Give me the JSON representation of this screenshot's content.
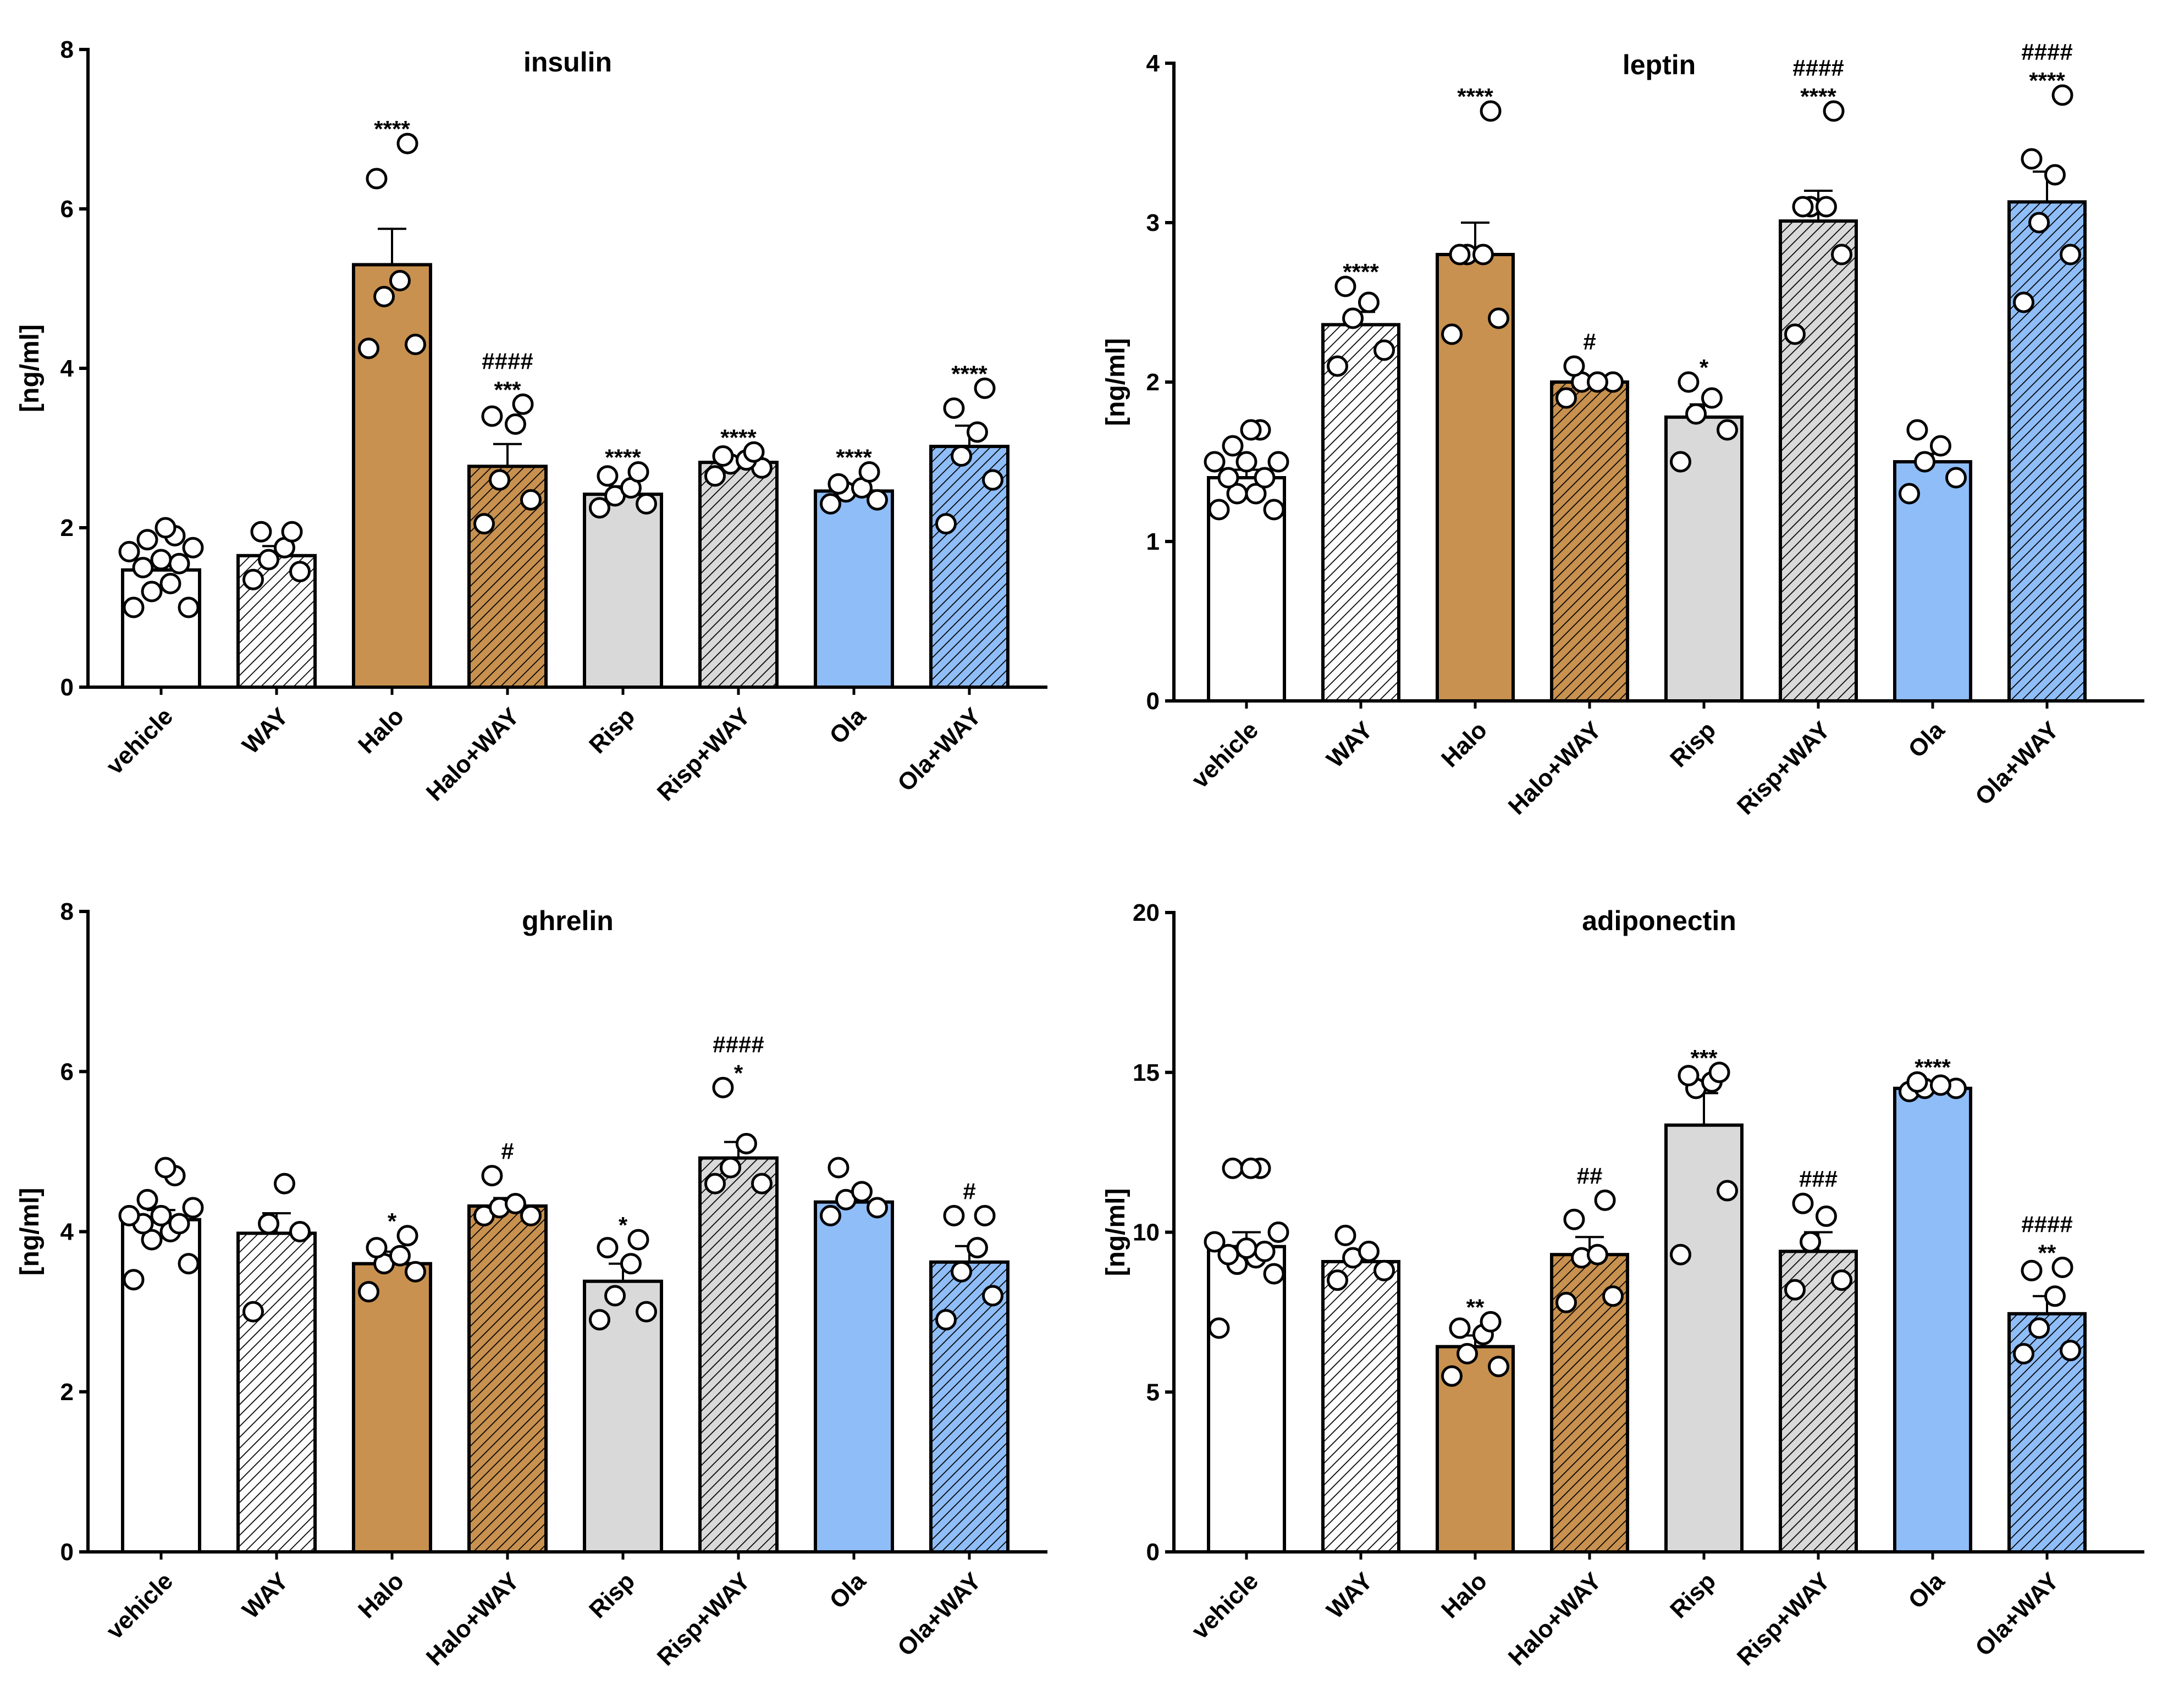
{
  "figure": "Hormone levels by treatment group",
  "colors": {
    "white": "#ffffff",
    "halo": "#c8914f",
    "risp": "#d9d9d9",
    "ola": "#8fbdf7",
    "axis": "#000000"
  },
  "chart_data": [
    {
      "type": "bar",
      "title": "insulin",
      "ylabel": "[ng/ml]",
      "ylim": [
        0,
        8
      ],
      "yticks": [
        "0",
        "2",
        "4",
        "6",
        "8"
      ],
      "categories": [
        "vehicle",
        "WAY",
        "Halo",
        "Halo+WAY",
        "Risp",
        "Risp+WAY",
        "Ola",
        "Ola+WAY"
      ],
      "values": [
        1.47,
        1.65,
        5.3,
        2.77,
        2.42,
        2.82,
        2.46,
        3.02
      ],
      "sem": [
        0.1,
        0.12,
        0.45,
        0.28,
        0.1,
        0.06,
        0.07,
        0.26
      ],
      "points": [
        [
          1.0,
          1.0,
          1.2,
          1.3,
          1.5,
          1.55,
          1.6,
          1.7,
          1.75,
          1.85,
          1.9,
          2.0
        ],
        [
          1.35,
          1.45,
          1.6,
          1.75,
          1.95,
          1.95
        ],
        [
          4.25,
          4.3,
          4.9,
          5.1,
          6.38,
          6.82
        ],
        [
          2.05,
          2.35,
          2.6,
          3.3,
          3.4,
          3.55
        ],
        [
          2.25,
          2.3,
          2.4,
          2.5,
          2.65,
          2.7
        ],
        [
          2.65,
          2.75,
          2.8,
          2.85,
          2.9,
          2.95
        ],
        [
          2.3,
          2.35,
          2.45,
          2.5,
          2.55,
          2.7
        ],
        [
          2.05,
          2.6,
          2.9,
          3.2,
          3.5,
          3.75
        ]
      ],
      "stars": [
        "",
        "",
        "****",
        "***",
        "****",
        "****",
        "****",
        "****"
      ],
      "hashes": [
        "",
        "",
        "",
        "####",
        "",
        "",
        "",
        ""
      ]
    },
    {
      "type": "bar",
      "title": "leptin",
      "ylabel": "[ng/ml]",
      "ylim": [
        0,
        4
      ],
      "yticks": [
        "0",
        "1",
        "2",
        "3",
        "4"
      ],
      "categories": [
        "vehicle",
        "WAY",
        "Halo",
        "Halo+WAY",
        "Risp",
        "Risp+WAY",
        "Ola",
        "Ola+WAY"
      ],
      "values": [
        1.4,
        2.36,
        2.8,
        2.0,
        1.78,
        3.01,
        1.5,
        3.13
      ],
      "sem": [
        0.05,
        0.08,
        0.2,
        0.03,
        0.08,
        0.19,
        0.05,
        0.19
      ],
      "points": [
        [
          1.2,
          1.2,
          1.3,
          1.3,
          1.4,
          1.4,
          1.5,
          1.5,
          1.5,
          1.6,
          1.7,
          1.7
        ],
        [
          2.1,
          2.2,
          2.4,
          2.5,
          2.6
        ],
        [
          2.3,
          2.4,
          2.8,
          2.8,
          2.8,
          3.7
        ],
        [
          1.9,
          2.0,
          2.0,
          2.0,
          2.1
        ],
        [
          1.5,
          1.7,
          1.8,
          1.9,
          2.0
        ],
        [
          2.3,
          2.8,
          3.1,
          3.1,
          3.1,
          3.7
        ],
        [
          1.3,
          1.4,
          1.5,
          1.6,
          1.7
        ],
        [
          2.5,
          2.8,
          3.0,
          3.3,
          3.4,
          3.8
        ]
      ],
      "stars": [
        "",
        "****",
        "****",
        "",
        "*",
        "****",
        "",
        "****"
      ],
      "hashes": [
        "",
        "",
        "",
        "#",
        "",
        "####",
        "",
        "####"
      ]
    },
    {
      "type": "bar",
      "title": "ghrelin",
      "ylabel": "[ng/ml]",
      "ylim": [
        0,
        8
      ],
      "yticks": [
        "0",
        "2",
        "4",
        "6",
        "8"
      ],
      "categories": [
        "vehicle",
        "WAY",
        "Halo",
        "Halo+WAY",
        "Risp",
        "Risp+WAY",
        "Ola",
        "Ola+WAY"
      ],
      "values": [
        4.15,
        3.98,
        3.6,
        4.32,
        3.38,
        4.92,
        4.37,
        3.62
      ],
      "sem": [
        0.12,
        0.25,
        0.15,
        0.1,
        0.22,
        0.2,
        0.1,
        0.2
      ],
      "points": [
        [
          3.4,
          3.6,
          3.9,
          4.0,
          4.1,
          4.1,
          4.2,
          4.2,
          4.3,
          4.4,
          4.7,
          4.8
        ],
        [
          3.0,
          4.0,
          4.1,
          4.6
        ],
        [
          3.25,
          3.5,
          3.6,
          3.7,
          3.8,
          3.95
        ],
        [
          4.2,
          4.2,
          4.3,
          4.35,
          4.7
        ],
        [
          2.9,
          3.0,
          3.2,
          3.6,
          3.8,
          3.9
        ],
        [
          4.6,
          4.6,
          4.8,
          5.1,
          5.8
        ],
        [
          4.2,
          4.3,
          4.4,
          4.5,
          4.8
        ],
        [
          2.9,
          3.2,
          3.5,
          3.8,
          4.2,
          4.2
        ]
      ],
      "stars": [
        "",
        "",
        "*",
        "",
        "*",
        "*",
        "",
        ""
      ],
      "hashes": [
        "",
        "",
        "",
        "#",
        "",
        "####",
        "",
        "#"
      ]
    },
    {
      "type": "bar",
      "title": "adiponectin",
      "ylabel": "[ng/ml]",
      "ylim": [
        0,
        20
      ],
      "yticks": [
        "0",
        "5",
        "10",
        "15",
        "20"
      ],
      "categories": [
        "vehicle",
        "WAY",
        "Halo",
        "Halo+WAY",
        "Risp",
        "Risp+WAY",
        "Ola",
        "Ola+WAY"
      ],
      "values": [
        9.55,
        9.08,
        6.42,
        9.3,
        13.35,
        9.4,
        14.5,
        7.45
      ],
      "sem": [
        0.45,
        0.3,
        0.35,
        0.55,
        1.0,
        0.6,
        0.12,
        0.55
      ],
      "points": [
        [
          7.0,
          8.7,
          9.0,
          9.2,
          9.3,
          9.4,
          9.5,
          9.7,
          10.0,
          12.0,
          12.0,
          12.0
        ],
        [
          8.5,
          8.8,
          9.2,
          9.4,
          9.9
        ],
        [
          5.5,
          5.8,
          6.2,
          6.8,
          7.0,
          7.2
        ],
        [
          7.8,
          8.0,
          9.2,
          9.3,
          10.4,
          11.0
        ],
        [
          9.3,
          11.3,
          14.5,
          14.7,
          14.9,
          15.0
        ],
        [
          8.2,
          8.5,
          9.7,
          10.5,
          10.9
        ],
        [
          14.4,
          14.5,
          14.5,
          14.6,
          14.7
        ],
        [
          6.2,
          6.3,
          7.0,
          8.0,
          8.8,
          8.9
        ]
      ],
      "stars": [
        "",
        "",
        "**",
        "",
        "***",
        "",
        "****",
        "**"
      ],
      "hashes": [
        "",
        "",
        "",
        "##",
        "",
        "###",
        "",
        "####"
      ]
    }
  ]
}
